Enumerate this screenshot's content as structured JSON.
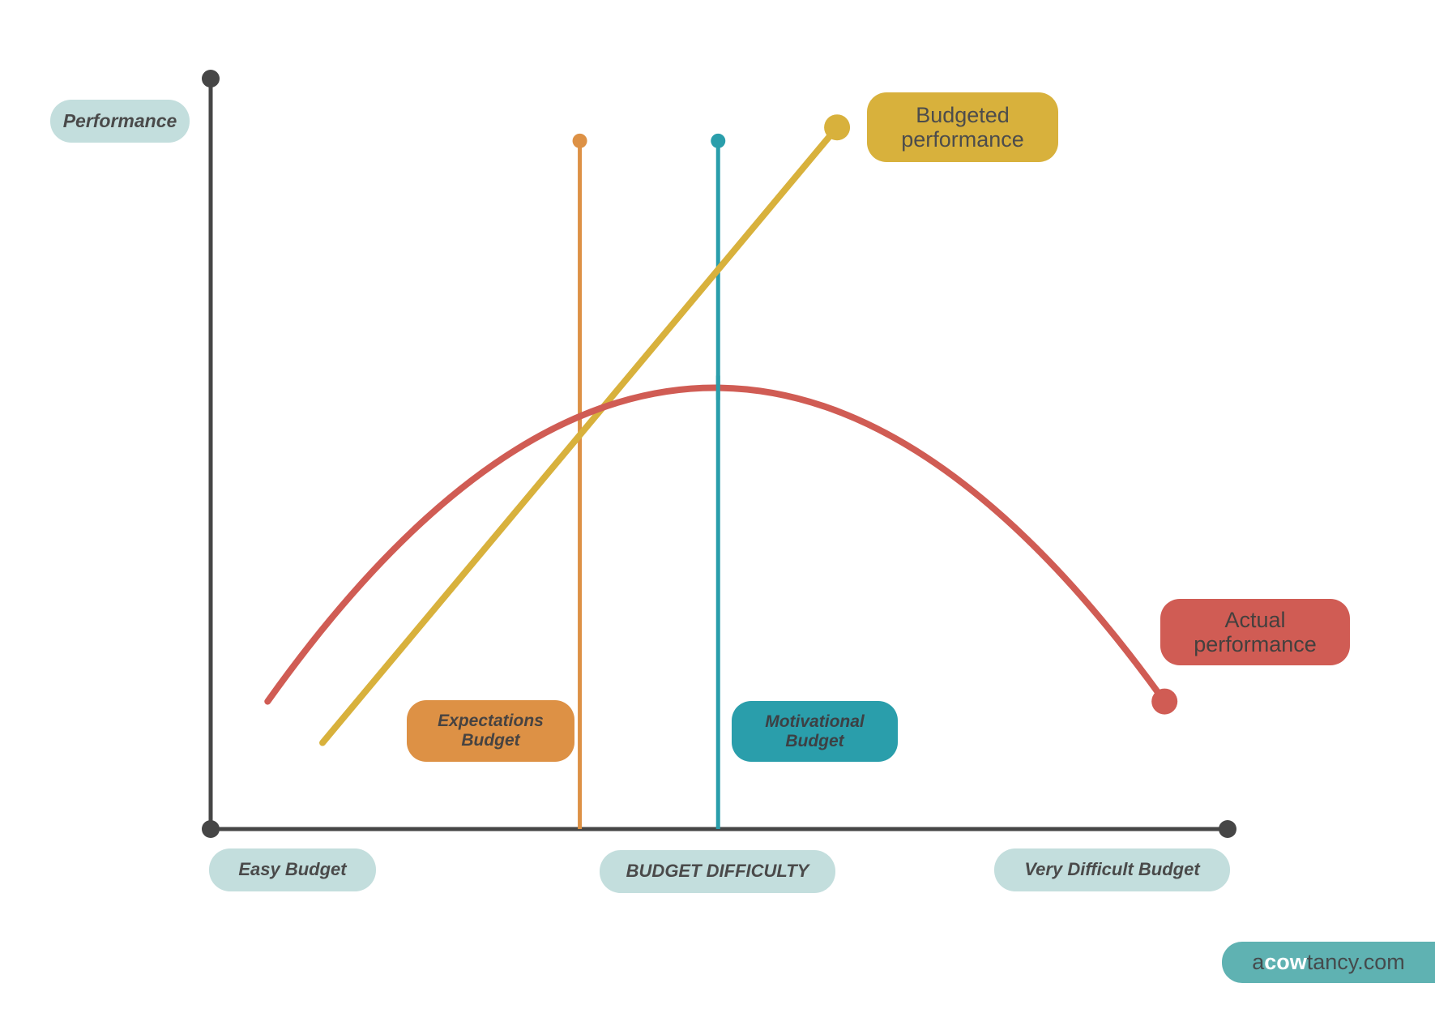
{
  "colors": {
    "background": "#ffffff",
    "axis": "#464646",
    "axis_label_badge": "#c3dedd",
    "text_dark": "#4a4a4a",
    "budgeted_performance": "#d8b13c",
    "actual_performance": "#d05c54",
    "expectations_budget": "#dd9145",
    "motivational_budget": "#2a9eab",
    "logo_background": "#5fb2b2"
  },
  "labels": {
    "performance": "Performance",
    "easy_budget": "Easy Budget",
    "budget_difficulty": "BUDGET DIFFICULTY",
    "very_difficult_budget": "Very Difficult Budget",
    "budgeted_performance": "Budgeted\nperformance",
    "actual_performance": "Actual\nperformance",
    "expectations_budget": "Expectations\nBudget",
    "motivational_budget": "Motivational\nBudget"
  },
  "logo": {
    "prefix": "a",
    "highlight": "cow",
    "suffix": "tancy.com"
  },
  "chart_data": {
    "type": "line",
    "title": "",
    "xlabel": "BUDGET DIFFICULTY",
    "ylabel": "Performance",
    "xlim": [
      0,
      10
    ],
    "ylim": [
      0,
      10
    ],
    "grid": false,
    "x_tick_labels": [
      "Easy Budget",
      "Very Difficult Budget"
    ],
    "legend_position": "inline-callout-badges",
    "axis_style": {
      "stroke_width": 5,
      "endpoint_dot_radius": 11
    },
    "series": [
      {
        "name": "Budgeted performance",
        "color": "#d8b13c",
        "shape": "straight",
        "stroke_width": 8,
        "points": [
          [
            1.1,
            1.15
          ],
          [
            6.16,
            9.35
          ]
        ],
        "end_marker": {
          "at": "last",
          "radius": 16
        }
      },
      {
        "name": "Actual performance",
        "color": "#d05c54",
        "shape": "parabola",
        "stroke_width": 8,
        "points": [
          [
            0.56,
            1.7
          ],
          [
            4.96,
            5.88
          ],
          [
            9.38,
            1.7
          ]
        ],
        "end_marker": {
          "at": "last",
          "radius": 16
        }
      }
    ],
    "vertical_markers": [
      {
        "name": "Expectations Budget",
        "x": 3.63,
        "y_top": 9.17,
        "color": "#dd9145",
        "stroke_width": 5,
        "top_dot_radius": 9,
        "overlay_on_curve": false
      },
      {
        "name": "Motivational Budget",
        "x": 4.99,
        "y_top": 9.17,
        "color": "#2a9eab",
        "stroke_width": 5,
        "top_dot_radius": 9,
        "overlay_on_curve": true
      }
    ]
  }
}
